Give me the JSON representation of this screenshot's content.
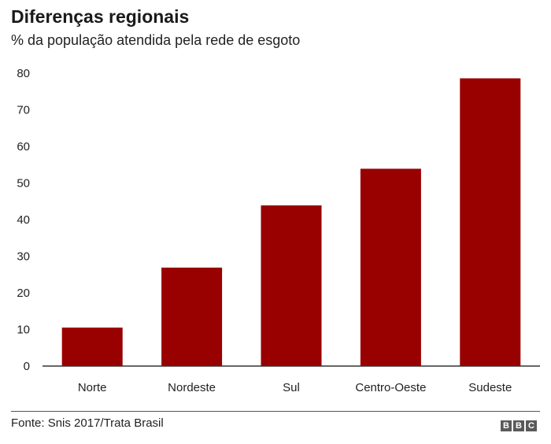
{
  "chart_data": {
    "type": "bar",
    "title": "Diferenças regionais",
    "subtitle": "% da população atendida pela rede de esgoto",
    "categories": [
      "Norte",
      "Nordeste",
      "Sul",
      "Centro-Oeste",
      "Sudeste"
    ],
    "values": [
      10.5,
      26.9,
      43.9,
      53.9,
      78.6
    ],
    "xlabel": "",
    "ylabel": "",
    "ylim": [
      0,
      80
    ],
    "yticks": [
      "0",
      "10",
      "20",
      "30",
      "40",
      "50",
      "60",
      "70",
      "80"
    ],
    "grid": false,
    "legend": "none",
    "bar_color": "#990000",
    "source": "Fonte: Snis 2017/Trata Brasil"
  },
  "logo": {
    "text": "BBC",
    "letters": [
      "B",
      "B",
      "C"
    ]
  }
}
